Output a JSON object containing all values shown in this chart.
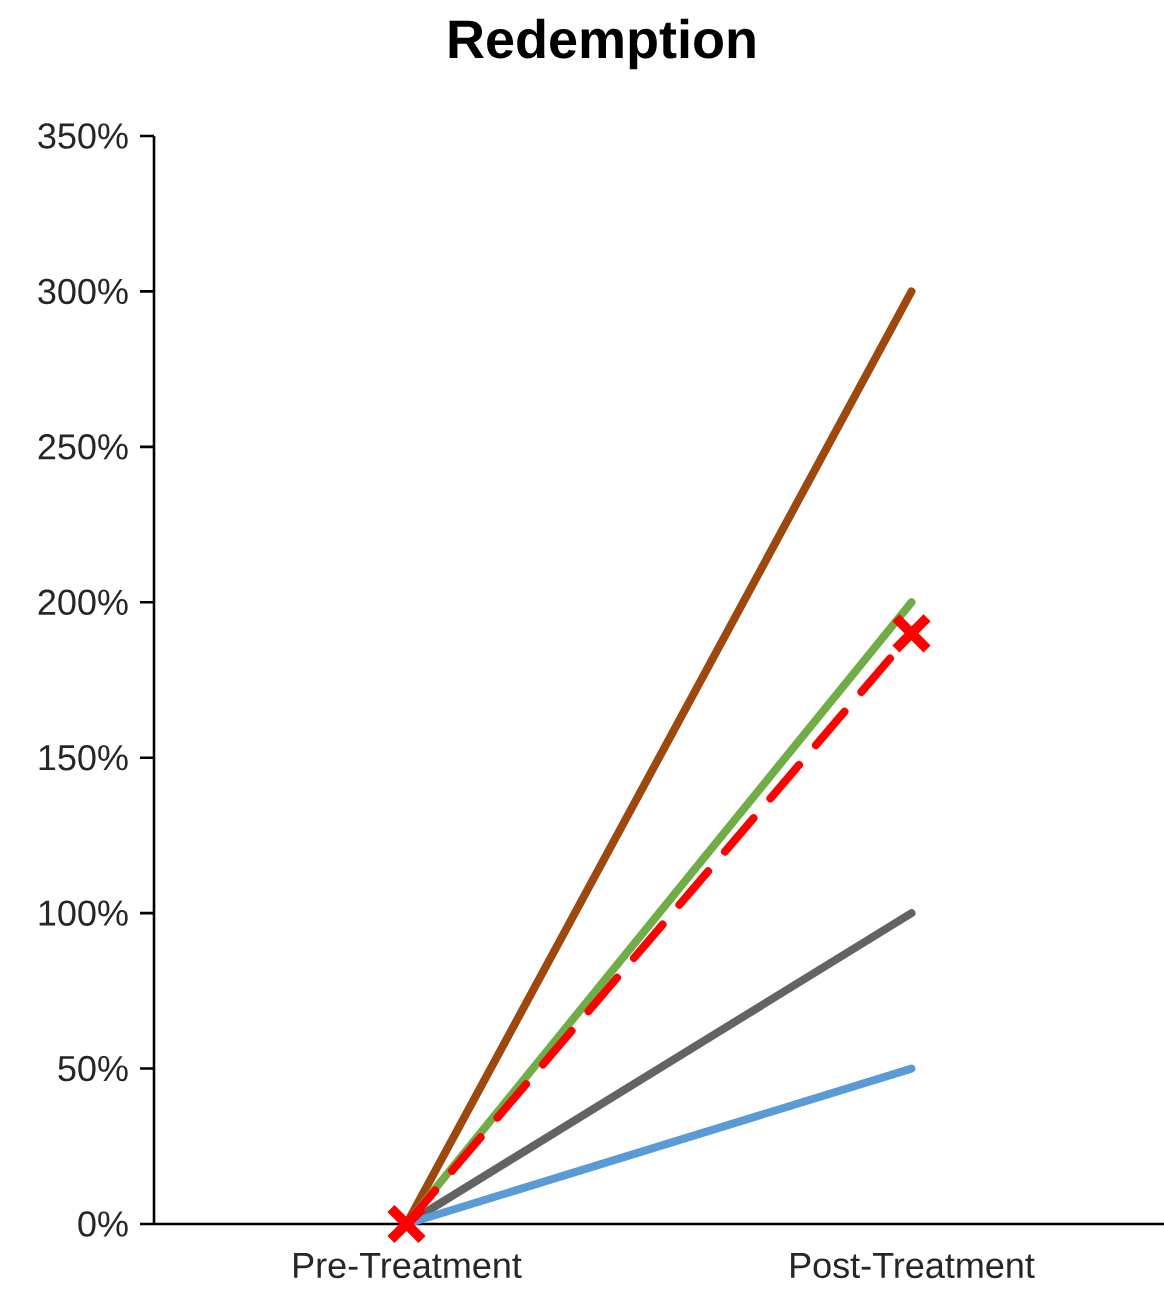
{
  "chart_data": {
    "type": "line",
    "title": "Redemption",
    "categories": [
      "Pre-Treatment",
      "Post-Treatment"
    ],
    "series": [
      {
        "color": "#9e480e",
        "values": [
          0,
          300
        ]
      },
      {
        "color": "#70ad47",
        "values": [
          0,
          200
        ]
      },
      {
        "color": "#636363",
        "values": [
          0,
          100
        ]
      },
      {
        "color": "#5b9bd5",
        "values": [
          0,
          50
        ]
      },
      {
        "color": "#ff0000",
        "values": [
          0,
          190
        ],
        "marker": "cross",
        "line_style": "dashed"
      }
    ],
    "ylim": [
      0,
      350
    ],
    "yticks": [
      {
        "value": 0,
        "label": "0%"
      },
      {
        "value": 50,
        "label": "50%"
      },
      {
        "value": 100,
        "label": "100%"
      },
      {
        "value": 150,
        "label": "150%"
      },
      {
        "value": 200,
        "label": "200%"
      },
      {
        "value": 250,
        "label": "250%"
      },
      {
        "value": 300,
        "label": "300%"
      },
      {
        "value": 350,
        "label": "350%"
      }
    ]
  }
}
